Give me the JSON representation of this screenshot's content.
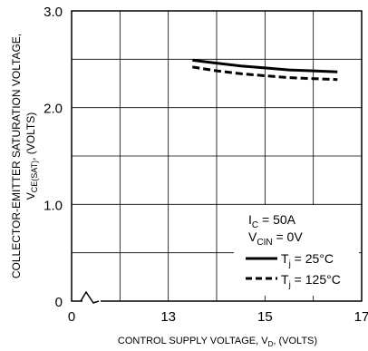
{
  "chart_data": {
    "type": "line",
    "ylabel_line1": "COLLECTOR-EMITTER SATURATION VOLTAGE,",
    "ylabel_line2_main": "V",
    "ylabel_line2_sub": "CE(SAT)",
    "ylabel_line2_rest": ", (VOLTS)",
    "xlabel_main": "CONTROL SUPPLY VOLTAGE, V",
    "xlabel_sub": "D",
    "xlabel_rest": ", (VOLTS)",
    "xlim": [
      0,
      17
    ],
    "ylim": [
      0,
      3.0
    ],
    "axis_break_x": true,
    "x_ticks": [
      {
        "value": 0,
        "label": "0"
      },
      {
        "value": 13,
        "label": "13"
      },
      {
        "value": 15,
        "label": "15"
      },
      {
        "value": 17,
        "label": "17"
      }
    ],
    "y_ticks": [
      {
        "value": 0,
        "label": "0"
      },
      {
        "value": 1.0,
        "label": "1.0"
      },
      {
        "value": 2.0,
        "label": "2.0"
      },
      {
        "value": 3.0,
        "label": "3.0"
      }
    ],
    "grid": true,
    "annotations": {
      "ic_main": "I",
      "ic_sub": "C",
      "ic_rest": " = 50A",
      "vcin_main": "V",
      "vcin_sub": "CIN",
      "vcin_rest": " = 0V"
    },
    "series": [
      {
        "label_main": "T",
        "label_sub": "j",
        "label_rest": " = 25°C",
        "style": "solid",
        "x": [
          13.5,
          14.0,
          14.5,
          15.0,
          15.5,
          16.0,
          16.5
        ],
        "y": [
          2.49,
          2.46,
          2.43,
          2.41,
          2.39,
          2.38,
          2.37
        ]
      },
      {
        "label_main": "T",
        "label_sub": "j",
        "label_rest": " = 125°C",
        "style": "dashed",
        "x": [
          13.5,
          14.0,
          14.5,
          15.0,
          15.5,
          16.0,
          16.5
        ],
        "y": [
          2.42,
          2.38,
          2.35,
          2.33,
          2.31,
          2.3,
          2.29
        ]
      }
    ],
    "legend_position": "bottom-right"
  }
}
